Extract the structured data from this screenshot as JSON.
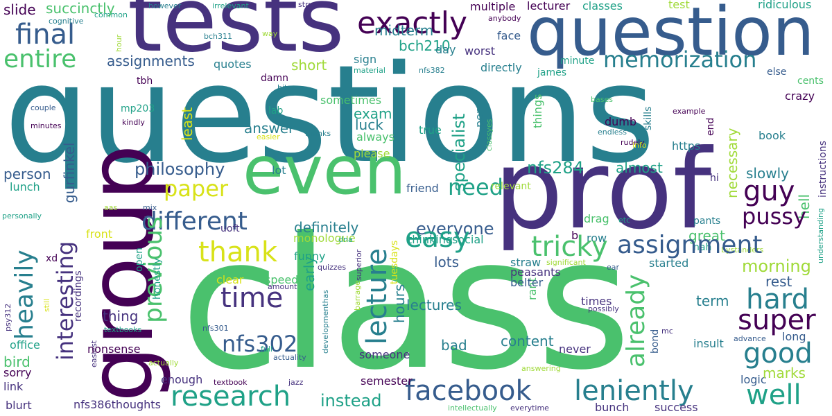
{
  "palette": {
    "deep_purple": "#440154",
    "indigo": "#46327e",
    "blue": "#365c8d",
    "teal_blue": "#277f8e",
    "teal": "#1fa187",
    "green": "#4ac16d",
    "lime": "#a0da39",
    "yellow": "#d8e219"
  },
  "words": {
    "questions": "questions",
    "class": "class",
    "tests": "tests",
    "question": "question",
    "prof": "prof",
    "group": "group",
    "even": "even",
    "exactly": "exactly",
    "final": "final",
    "entire": "entire",
    "slide": "slide",
    "succinctly": "succinctly",
    "cognitive": "cognitive",
    "common": "common",
    "however": "however",
    "irrelevant": "irrelevant",
    "structure": "structure",
    "test": "test",
    "ridiculous": "ridiculous",
    "classes": "classes",
    "lecturer": "lecturer",
    "anybody": "anybody",
    "multiple": "multiple",
    "midterm": "midterm",
    "bch210": "bch210",
    "bch311": "bch311",
    "hour": "hour",
    "way": "way",
    "memorization": "memorization",
    "assignments": "assignments",
    "quotes": "quotes",
    "short": "short",
    "sign": "sign",
    "material": "material",
    "nfs382": "nfs382",
    "day": "day",
    "face": "face",
    "worst": "worst",
    "directly": "directly",
    "james": "james",
    "minute": "minute",
    "else": "else",
    "cents": "cents",
    "tbh": "tbh",
    "damn": "damn",
    "bit": "bit",
    "couple": "couple",
    "minutes": "minutes",
    "kindly": "kindly",
    "mp203": "mp203",
    "lab": "lab",
    "sometimes": "sometimes",
    "least": "least",
    "exam": "exam",
    "specialist": "specialist",
    "per": "per",
    "things": "things",
    "skills": "skills",
    "crazy": "crazy",
    "bases": "bases",
    "example": "example",
    "endless": "endless",
    "end": "end",
    "dumb": "dumb",
    "rudely": "rudely",
    "book": "book",
    "info": "info",
    "https": "https",
    "classyes": "classyes",
    "true": "true",
    "always": "always",
    "please": "please",
    "luck": "luck",
    "answer": "answer",
    "gurfinkel": "gurfinkel",
    "easier": "easier",
    "thanks": "thanks",
    "philosophy": "philosophy",
    "person": "person",
    "lunch": "lunch",
    "personally": "personally",
    "heavily": "heavily",
    "interesting": "interesting",
    "paper": "paper",
    "different": "different",
    "need": "need",
    "nfs284": "nfs284",
    "almost": "almost",
    "guy": "guy",
    "necessary": "necessary",
    "slowly": "slowly",
    "instructions": "instructions",
    "hi": "hi",
    "hell": "hell",
    "pussy": "pussy",
    "relevant": "relevant",
    "friend": "friend",
    "lot": "lot",
    "aas": "aas",
    "mix": "mix",
    "definitely": "definitely",
    "everyone": "everyone",
    "uoft": "uoft",
    "drag": "drag",
    "etc": "etc",
    "pants": "pants",
    "great": "great",
    "nah": "nah",
    "bystanders": "bystanders",
    "understanding": "understanding",
    "row": "row",
    "b": "b",
    "thinking": "thinking",
    "social": "social",
    "monologue": "monologue",
    "dna": "dna",
    "front": "front",
    "thank": "thank",
    "time": "time",
    "easy": "easy",
    "tricky": "tricky",
    "assignment": "assignment",
    "hard": "hard",
    "super": "super",
    "morning": "morning",
    "rest": "rest",
    "term": "term",
    "lecture": "lecture",
    "already": "already",
    "previous": "previous",
    "open": "open",
    "funny": "funny",
    "lots": "lots",
    "xd": "xd",
    "recordings": "recordings",
    "honestly": "honestly",
    "quizzes": "quizzes",
    "tuesdays": "tuesdays",
    "superior": "superior",
    "rant": "rant",
    "straw": "straw",
    "peasants": "peasants",
    "belter": "belter",
    "significant": "significant",
    "started": "started",
    "ear": "ear",
    "possibly": "possibly",
    "times": "times",
    "mc": "mc",
    "bond": "bond",
    "long": "long",
    "advance": "advance",
    "insult": "insult",
    "logic": "logic",
    "psy312": "psy312",
    "still": "still",
    "thing": "thing",
    "clear": "clear",
    "speed": "speed",
    "early": "early",
    "hours": "hours",
    "amount": "amount",
    "developmenthas": "developmenthas",
    "barrage": "barrage",
    "lectures": "lectures",
    "nfs301": "nfs301",
    "nfs302": "nfs302",
    "content": "content",
    "bad": "bad",
    "good": "good",
    "office": "office",
    "textbooks": "textbooks",
    "easiest": "easiest",
    "bird": "bird",
    "actually": "actually",
    "nonsense": "nonsense",
    "sorry": "sorry",
    "link": "link",
    "full": "full",
    "actuality": "actuality",
    "someone": "someone",
    "never": "never",
    "answering": "answering",
    "marks": "marks",
    "research": "research",
    "facebook": "facebook",
    "leniently": "leniently",
    "well": "well",
    "enough": "enough",
    "textbook": "textbook",
    "jazz": "jazz",
    "semester": "semester",
    "instead": "instead",
    "blurt": "blurt",
    "nfs386thoughts": "nfs386thoughts",
    "intellectually": "intellectually",
    "everytime": "everytime",
    "bunch": "bunch",
    "success": "success"
  }
}
